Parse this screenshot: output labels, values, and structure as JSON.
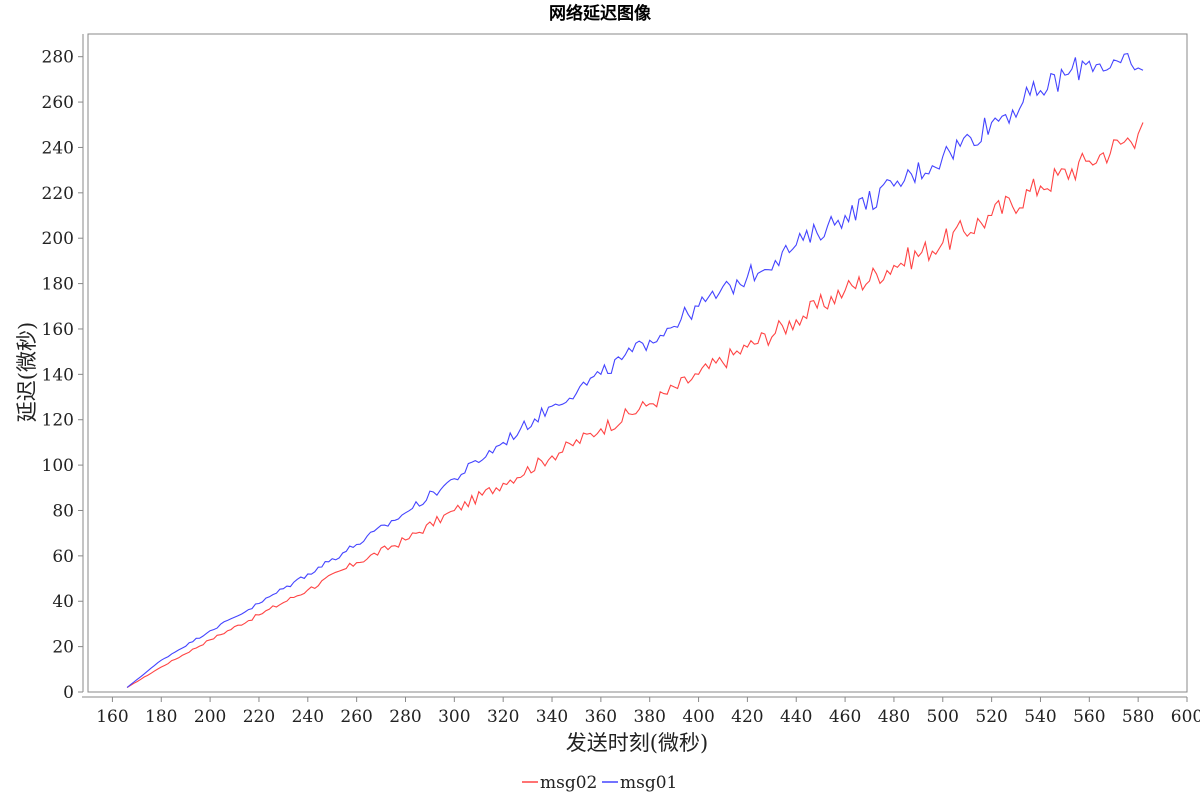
{
  "chart_data": {
    "type": "line",
    "title": "网络延迟图像",
    "xlabel": "发送时刻(微秒)",
    "ylabel": "延迟(微秒)",
    "xlim": [
      150,
      600
    ],
    "ylim": [
      0,
      290
    ],
    "xticks": [
      160,
      180,
      200,
      220,
      240,
      260,
      280,
      300,
      320,
      340,
      360,
      380,
      400,
      420,
      440,
      460,
      480,
      500,
      520,
      540,
      560,
      580,
      600
    ],
    "yticks": [
      0,
      20,
      40,
      60,
      80,
      100,
      120,
      140,
      160,
      180,
      200,
      220,
      240,
      260,
      280
    ],
    "legend_position": "bottom-center",
    "series": [
      {
        "name": "msg02",
        "color": "#ff4444",
        "x": [
          166,
          180,
          200,
          220,
          240,
          260,
          280,
          300,
          320,
          340,
          360,
          380,
          400,
          420,
          440,
          460,
          480,
          500,
          520,
          540,
          560,
          580,
          582
        ],
        "y": [
          2,
          11,
          23,
          34,
          45,
          57,
          67,
          80,
          92,
          104,
          116,
          127,
          140,
          152,
          164,
          177,
          188,
          198,
          210,
          223,
          234,
          246,
          251
        ]
      },
      {
        "name": "msg01",
        "color": "#4444ff",
        "x": [
          166,
          180,
          200,
          220,
          240,
          260,
          280,
          300,
          320,
          340,
          360,
          380,
          400,
          420,
          440,
          460,
          480,
          500,
          520,
          540,
          560,
          580,
          582
        ],
        "y": [
          2,
          14,
          27,
          39,
          52,
          65,
          79,
          94,
          110,
          126,
          140,
          155,
          170,
          183,
          197,
          210,
          223,
          236,
          251,
          265,
          278,
          275,
          274
        ]
      }
    ]
  }
}
